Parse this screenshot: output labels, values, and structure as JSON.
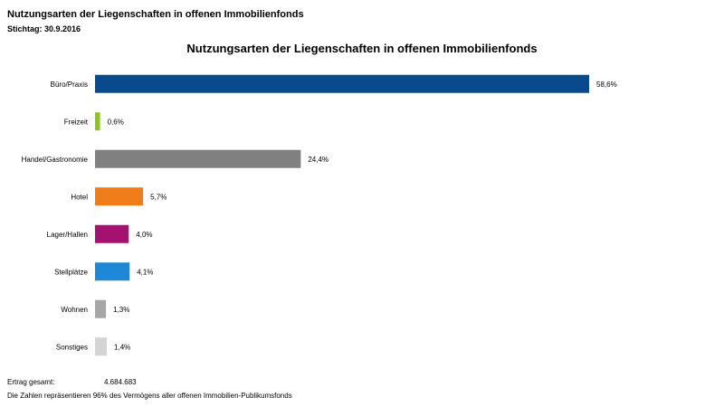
{
  "header": {
    "title": "Nutzungsarten der Liegenschaften in offenen Immobilienfonds",
    "date": "Stichtag: 30.9.2016"
  },
  "chart_data": {
    "type": "bar",
    "orientation": "horizontal",
    "title": "Nutzungsarten der Liegenschaften in offenen Immobilienfonds",
    "categories": [
      "Büro/Praxis",
      "Freizeit",
      "Handel/Gastronomie",
      "Hotel",
      "Lager/Hallen",
      "Stellplätze",
      "Wohnen",
      "Sonstiges"
    ],
    "values": [
      58.6,
      0.6,
      24.4,
      5.7,
      4.0,
      4.1,
      1.3,
      1.4
    ],
    "value_labels": [
      "58,6%",
      "0,6%",
      "24,4%",
      "5,7%",
      "4,0%",
      "4,1%",
      "1,3%",
      "1,4%"
    ],
    "colors": [
      "#0a4a8c",
      "#8fc31f",
      "#808080",
      "#f07c1a",
      "#a3126e",
      "#1e88d8",
      "#a6a6a6",
      "#d4d4d4"
    ],
    "xlim": [
      0,
      60
    ],
    "axis_visible": false,
    "grid": false,
    "legend": "none"
  },
  "footer": {
    "total_label": "Ertrag gesamt:",
    "total_value": "4.684.683",
    "note": "Die Zahlen repräsentieren 96% des Vermögens aller offenen Immobilien-Publikumsfonds"
  }
}
